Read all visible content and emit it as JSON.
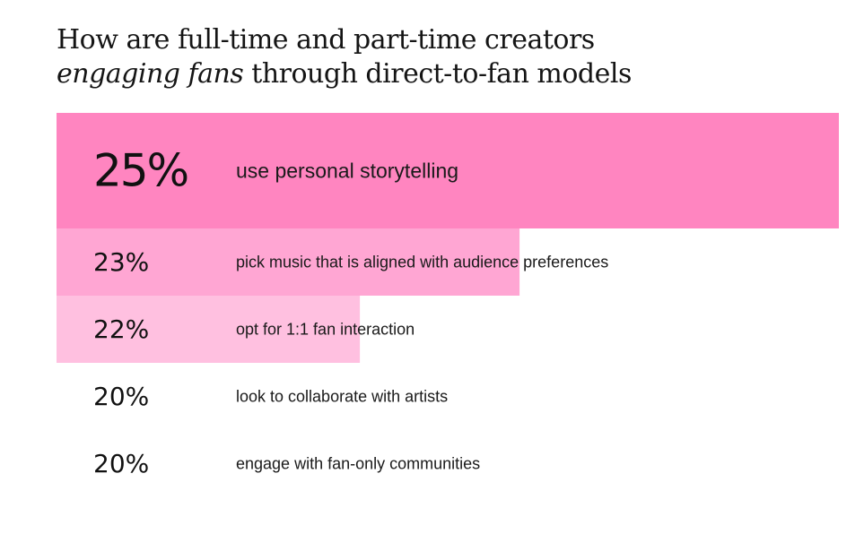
{
  "title": {
    "line1": "How are full-time and part-time creators",
    "line2_italic": "engaging fans",
    "line2_rest": " through direct-to-fan models"
  },
  "chart_data": {
    "type": "bar",
    "orientation": "horizontal",
    "title": "How are full-time and part-time creators engaging fans through direct-to-fan models",
    "unit": "%",
    "categories": [
      "use personal storytelling",
      "pick music that is aligned with audience preferences",
      "opt for 1:1 fan interaction",
      "look to collaborate with artists",
      "engage with fan-only communities"
    ],
    "values": [
      25,
      23,
      22,
      20,
      20
    ],
    "value_labels": [
      "25%",
      "23%",
      "22%",
      "20%",
      "20%"
    ],
    "colors": [
      "#ff85c0",
      "#ffa6d3",
      "#ffc0e0",
      "#ffd6ea",
      "#ffe2f0"
    ],
    "grid": false,
    "legend": "none"
  }
}
